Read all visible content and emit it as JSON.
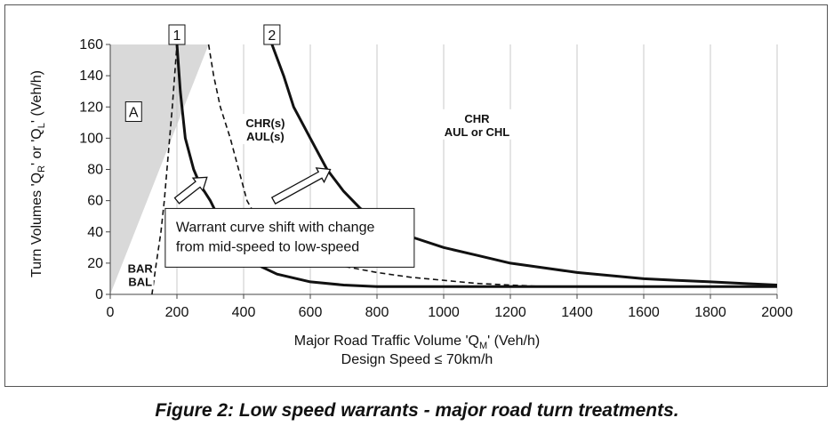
{
  "chart_data": {
    "type": "line",
    "xlabel": "Major Road Traffic Volume 'Q",
    "xlabel_sub": "M",
    "xlabel_tail": "' (Veh/h)",
    "xlabel2": "Design Speed ≤ 70km/h",
    "ylabel_parts": [
      "Turn Volumes 'Q",
      "R",
      "' or 'Q",
      "L",
      "' (Veh/h)"
    ],
    "xlim": [
      0,
      2000
    ],
    "ylim": [
      0,
      160
    ],
    "x_ticks": [
      "0",
      "200",
      "400",
      "600",
      "800",
      "1000",
      "1200",
      "1400",
      "1600",
      "1800",
      "2000"
    ],
    "y_ticks": [
      "0",
      "20",
      "40",
      "60",
      "80",
      "100",
      "120",
      "140",
      "160"
    ],
    "grid": "vertical",
    "series": [
      {
        "style": "dashed",
        "points": [
          [
            125,
            0
          ],
          [
            138,
            20
          ],
          [
            152,
            40
          ],
          [
            162,
            60
          ],
          [
            170,
            80
          ],
          [
            178,
            100
          ],
          [
            186,
            120
          ],
          [
            193,
            140
          ],
          [
            200,
            160
          ]
        ]
      },
      {
        "label": "1",
        "style": "solid",
        "points": [
          [
            200,
            160
          ],
          [
            210,
            130
          ],
          [
            225,
            100
          ],
          [
            250,
            80
          ],
          [
            270,
            70
          ],
          [
            300,
            60
          ],
          [
            330,
            47
          ],
          [
            360,
            38
          ],
          [
            400,
            27
          ],
          [
            450,
            18
          ],
          [
            500,
            13
          ],
          [
            600,
            8
          ],
          [
            700,
            6
          ],
          [
            800,
            5
          ],
          [
            1000,
            5
          ],
          [
            2000,
            5
          ]
        ]
      },
      {
        "style": "dashed",
        "points": [
          [
            295,
            160
          ],
          [
            310,
            140
          ],
          [
            330,
            120
          ],
          [
            360,
            100
          ],
          [
            385,
            80
          ],
          [
            410,
            60
          ],
          [
            450,
            45
          ],
          [
            500,
            34
          ],
          [
            600,
            25
          ],
          [
            700,
            18
          ],
          [
            800,
            14
          ],
          [
            900,
            11
          ],
          [
            1000,
            9
          ],
          [
            1100,
            7
          ],
          [
            1200,
            6
          ],
          [
            1300,
            5
          ],
          [
            1350,
            5
          ]
        ]
      },
      {
        "label": "2",
        "style": "solid",
        "points": [
          [
            485,
            160
          ],
          [
            520,
            140
          ],
          [
            550,
            120
          ],
          [
            600,
            100
          ],
          [
            650,
            80
          ],
          [
            700,
            66
          ],
          [
            750,
            55
          ],
          [
            800,
            48
          ],
          [
            900,
            37
          ],
          [
            1000,
            30
          ],
          [
            1100,
            25
          ],
          [
            1200,
            20
          ],
          [
            1300,
            17
          ],
          [
            1400,
            14
          ],
          [
            1500,
            12
          ],
          [
            1600,
            10
          ],
          [
            1700,
            9
          ],
          [
            1800,
            8
          ],
          [
            1900,
            7
          ],
          [
            2000,
            6
          ]
        ]
      }
    ],
    "shaded_region": {
      "label": "A",
      "points": [
        [
          0,
          160
        ],
        [
          295,
          160
        ],
        [
          0,
          0
        ]
      ]
    },
    "region_labels": [
      {
        "lines": [
          "BAR",
          "BAL"
        ],
        "x": 90,
        "y": 14
      },
      {
        "lines": [
          "CHR(s)",
          "AUL(s)"
        ],
        "x": 465,
        "y": 107
      },
      {
        "lines": [
          "CHR",
          "AUL or CHL"
        ],
        "x": 1100,
        "y": 110
      }
    ],
    "annotation": {
      "lines": [
        "Warrant curve shift with change",
        "from mid-speed to low-speed"
      ]
    },
    "arrows": [
      {
        "from": [
          200,
          60
        ],
        "to": [
          290,
          75
        ]
      },
      {
        "from": [
          490,
          60
        ],
        "to": [
          660,
          80
        ]
      }
    ]
  },
  "caption": "Figure 2:  Low speed warrants - major road turn treatments."
}
